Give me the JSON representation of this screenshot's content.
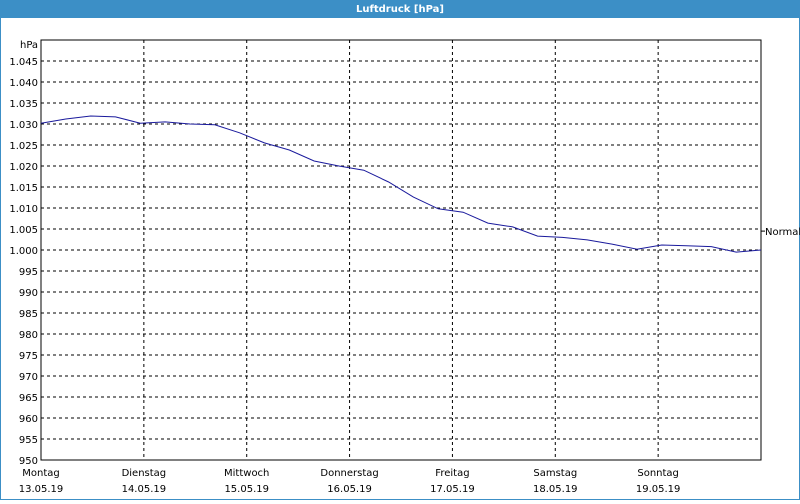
{
  "chart_data": {
    "type": "line",
    "title": "Luftdruck [hPa]",
    "y_unit": "hPa",
    "color": "#1a1a9c",
    "values": [
      1030.2,
      1031.2,
      1031.9,
      1031.7,
      1030.2,
      1030.5,
      1030.0,
      1029.8,
      1027.9,
      1025.5,
      1023.8,
      1021.2,
      1020.0,
      1019.0,
      1016.2,
      1012.6,
      1009.8,
      1009.0,
      1006.4,
      1005.5,
      1003.3,
      1003.0,
      1002.4,
      1001.4,
      1000.2,
      1001.2,
      1001.0,
      1000.8,
      999.5,
      1000.0
    ],
    "ylim": [
      950,
      1050
    ],
    "yticks": [
      950,
      955,
      960,
      965,
      970,
      975,
      980,
      985,
      990,
      995,
      {
        "value": 1000,
        "label": "1.000"
      },
      {
        "value": 1005,
        "label": "1.005"
      },
      {
        "value": 1010,
        "label": "1.010"
      },
      {
        "value": 1015,
        "label": "1.015"
      },
      {
        "value": 1020,
        "label": "1.020"
      },
      {
        "value": 1025,
        "label": "1.025"
      },
      {
        "value": 1030,
        "label": "1.030"
      },
      {
        "value": 1035,
        "label": "1.035"
      },
      {
        "value": 1040,
        "label": "1.040"
      },
      {
        "value": 1045,
        "label": "1.045"
      }
    ],
    "x_labels": [
      {
        "day": "Montag",
        "date": "13.05.19"
      },
      {
        "day": "Dienstag",
        "date": "14.05.19"
      },
      {
        "day": "Mittwoch",
        "date": "15.05.19"
      },
      {
        "day": "Donnerstag",
        "date": "16.05.19"
      },
      {
        "day": "Freitag",
        "date": "17.05.19"
      },
      {
        "day": "Samstag",
        "date": "18.05.19"
      },
      {
        "day": "Sonntag",
        "date": "19.05.19"
      }
    ],
    "grid": true,
    "reference": {
      "label": "Normal",
      "value": 1004.5
    }
  }
}
